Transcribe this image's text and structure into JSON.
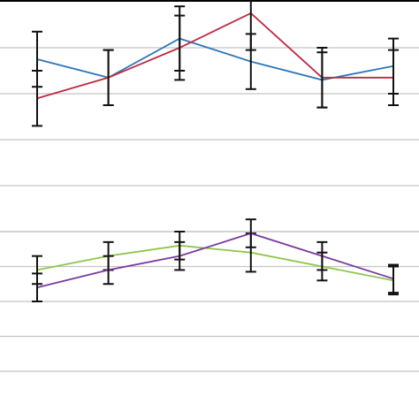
{
  "chart_data": [
    {
      "type": "line",
      "title": "",
      "xlabel": "",
      "ylabel": "",
      "x": [
        1,
        2,
        3,
        4,
        5,
        6
      ],
      "ylim": [
        0,
        5
      ],
      "grid": true,
      "legend": "none",
      "series": [
        {
          "color": "#2e75b6",
          "values": [
            3.75,
            3.35,
            4.2,
            3.7,
            3.3,
            3.6
          ],
          "errors": [
            0.6,
            0.6,
            0.7,
            0.6,
            0.6,
            0.6
          ]
        },
        {
          "color": "#be2a42",
          "values": [
            2.9,
            3.35,
            4.0,
            4.75,
            3.35,
            3.35
          ],
          "errors": [
            0.6,
            0.6,
            0.7,
            0.8,
            0.65,
            0.6
          ]
        }
      ]
    },
    {
      "type": "line",
      "title": "",
      "xlabel": "",
      "ylabel": "",
      "x": [
        1,
        2,
        3,
        4,
        5,
        6
      ],
      "ylim": [
        0,
        4
      ],
      "grid": true,
      "legend": "none",
      "series": [
        {
          "color": "#8fc64b",
          "values": [
            2.9,
            3.3,
            3.6,
            3.4,
            3.0,
            2.6
          ],
          "errors": [
            0.4,
            0.4,
            0.4,
            0.55,
            0.4,
            0.4
          ]
        },
        {
          "color": "#7a3aa0",
          "values": [
            2.4,
            2.9,
            3.3,
            3.95,
            3.3,
            2.65
          ],
          "errors": [
            0.4,
            0.4,
            0.4,
            0.4,
            0.4,
            0.4
          ]
        }
      ]
    }
  ]
}
